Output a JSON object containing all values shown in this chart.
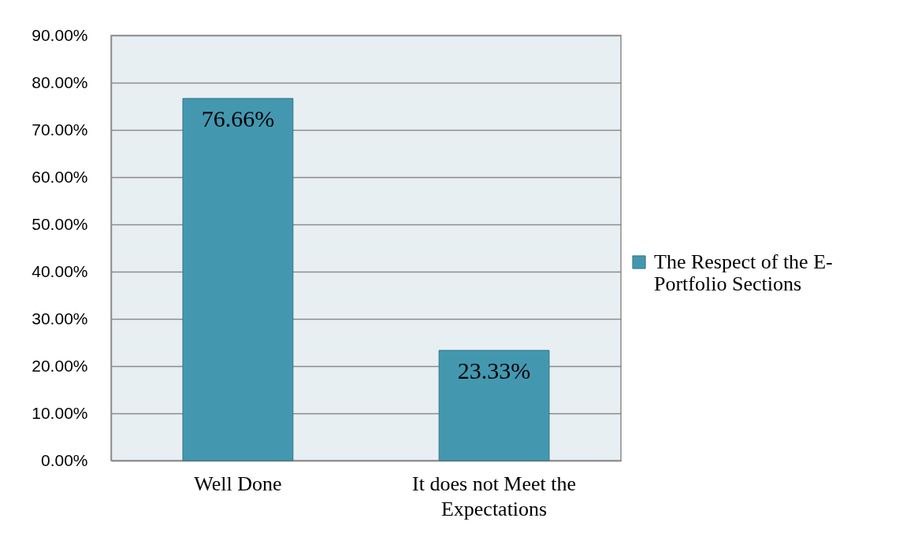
{
  "chart_data": {
    "type": "bar",
    "categories": [
      "Well Done",
      "It does not Meet the Expectations"
    ],
    "series": [
      {
        "name": "The Respect of the E-Portfolio Sections",
        "color": "#4398b0",
        "values": [
          76.66,
          23.33
        ],
        "value_labels": [
          "76.66%",
          "23.33%"
        ]
      }
    ],
    "ylim": [
      0,
      90
    ],
    "yticks": [
      {
        "value": 0,
        "label": "0.00%"
      },
      {
        "value": 10,
        "label": "10.00%"
      },
      {
        "value": 20,
        "label": "20.00%"
      },
      {
        "value": 30,
        "label": "30.00%"
      },
      {
        "value": 40,
        "label": "40.00%"
      },
      {
        "value": 50,
        "label": "50.00%"
      },
      {
        "value": 60,
        "label": "60.00%"
      },
      {
        "value": 70,
        "label": "70.00%"
      },
      {
        "value": 80,
        "label": "80.00%"
      },
      {
        "value": 90,
        "label": "90.00%"
      }
    ],
    "grid": "y",
    "legend": "right"
  }
}
